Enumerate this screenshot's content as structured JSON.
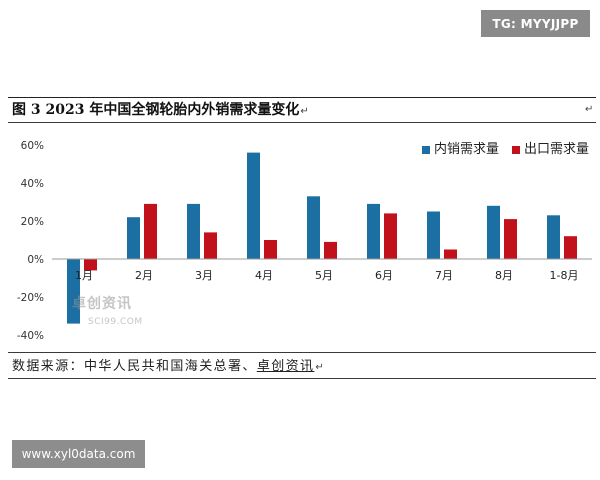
{
  "watermarks": {
    "top_right": "TG: MYYJJPP",
    "bottom_left": "www.xyl0data.com",
    "chart_logo": "卓创资讯",
    "chart_logo_domain": "SCI99.COM"
  },
  "figure": {
    "paragraph_mark": "↵",
    "source_prefix": "数据来源：中华人民共和国海关总署、",
    "source_link": "卓创资讯"
  },
  "chart_data": {
    "type": "bar",
    "title": "图 3 2023 年中国全钢轮胎内外销需求量变化",
    "xlabel": "",
    "ylabel": "",
    "categories": [
      "1月",
      "2月",
      "3月",
      "4月",
      "5月",
      "6月",
      "7月",
      "8月",
      "1-8月"
    ],
    "series": [
      {
        "name": "内销需求量",
        "color": "#1c6fa2",
        "values": [
          -34,
          22,
          29,
          56,
          33,
          29,
          25,
          28,
          23
        ]
      },
      {
        "name": "出口需求量",
        "color": "#c1121c",
        "values": [
          -6,
          29,
          14,
          10,
          9,
          24,
          5,
          21,
          12
        ]
      }
    ],
    "ylim": [
      -40,
      60
    ],
    "yticks": [
      60,
      40,
      20,
      0,
      -20,
      -40
    ],
    "ytick_labels": [
      "60%",
      "40%",
      "20%",
      "0%",
      "-20%",
      "-40%"
    ],
    "grid": false,
    "legend_position": "top-right"
  }
}
